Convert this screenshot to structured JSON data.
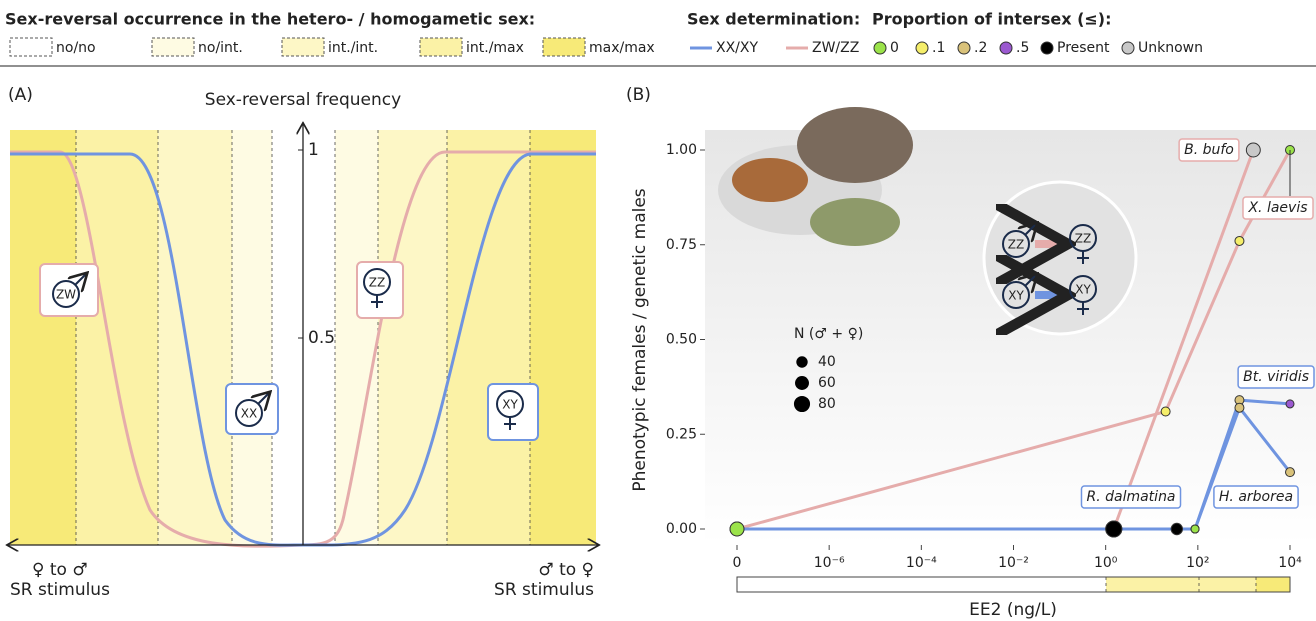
{
  "legend": {
    "occurrence": {
      "title": "Sex-reversal occurrence in the hetero- / homogametic sex:",
      "items": [
        {
          "label": "no/no",
          "color": "#ffffff"
        },
        {
          "label": "no/int.",
          "color": "#fefbe3"
        },
        {
          "label": "int./int.",
          "color": "#fdf7c6"
        },
        {
          "label": "int./max",
          "color": "#fbf2a6"
        },
        {
          "label": "max/max",
          "color": "#f7ea78"
        }
      ]
    },
    "sex_determination": {
      "title": "Sex determination:",
      "items": [
        {
          "label": "XX/XY",
          "color": "#6f94e0"
        },
        {
          "label": "ZW/ZZ",
          "color": "#e5acab"
        }
      ]
    },
    "intersex": {
      "title": "Proportion of intersex (≤):",
      "items": [
        {
          "label": "0",
          "color": "#9be34a"
        },
        {
          "label": ".1",
          "color": "#f5ee6a"
        },
        {
          "label": ".2",
          "color": "#d9c27a"
        },
        {
          "label": ".5",
          "color": "#9b59d0"
        },
        {
          "label": "Present",
          "color": "#000000"
        },
        {
          "label": "Unknown",
          "color": "#c8c8c8"
        }
      ]
    }
  },
  "panel_a": {
    "label": "(A)",
    "title": "Sex-reversal frequency",
    "ylim": [
      0,
      1
    ],
    "yticks": [
      1,
      0.5
    ],
    "left_label": [
      "♀ to ♂",
      "SR stimulus"
    ],
    "right_label": [
      "♂ to ♀",
      "SR stimulus"
    ],
    "icons": [
      "ZW",
      "XX",
      "ZZ",
      "XY"
    ]
  },
  "chart_data": {
    "type": "line",
    "label": "(B)",
    "y_label": "Phenotypic females / genetic males",
    "x_label": "EE2 (ng/L)",
    "xscale": "log",
    "xlim": [
      0,
      10000
    ],
    "ylim": [
      0,
      1
    ],
    "xticks": [
      0,
      {
        "value": 1e-06,
        "label": "10⁻⁶"
      },
      {
        "value": 0.0001,
        "label": "10⁻⁴"
      },
      {
        "value": 0.01,
        "label": "10⁻²"
      },
      {
        "value": 1,
        "label": "10⁰"
      },
      {
        "value": 100,
        "label": "10²"
      },
      {
        "value": 10000,
        "label": "10⁴"
      }
    ],
    "yticks": [
      {
        "value": 0,
        "label": "0.00"
      },
      {
        "value": 0.25,
        "label": "0.25"
      },
      {
        "value": 0.5,
        "label": "0.50"
      },
      {
        "value": 0.75,
        "label": "0.75"
      },
      {
        "value": 1,
        "label": "1.00"
      }
    ],
    "series": [
      {
        "name": "X. laevis",
        "color": "#e5acab",
        "x": [
          0,
          20,
          800,
          10000
        ],
        "values": [
          0,
          0.31,
          0.76,
          1
        ],
        "sizes": [
          60,
          25,
          25,
          25
        ],
        "point_colors": [
          "#9be34a",
          "#f5ee6a",
          "#f5ee6a",
          "#9be34a"
        ]
      },
      {
        "name": "B. bufo",
        "color": "#e5acab",
        "x": [
          1.5,
          1600
        ],
        "values": [
          0,
          1
        ],
        "sizes": [
          80,
          60
        ],
        "point_colors": [
          "#000000",
          "#c8c8c8"
        ]
      },
      {
        "name": "R. dalmatina",
        "color": "#6f94e0",
        "x": [
          0,
          1.5,
          35,
          87
        ],
        "values": [
          0,
          0,
          0,
          0
        ],
        "sizes": [
          60,
          80,
          40,
          20
        ],
        "point_colors": [
          "#9be34a",
          "#000000",
          "#000000",
          "#9be34a"
        ]
      },
      {
        "name": "Bt. viridis",
        "color": "#6f94e0",
        "x": [
          87,
          800,
          10000
        ],
        "values": [
          0,
          0.34,
          0.33
        ],
        "sizes": [
          20,
          25,
          20
        ],
        "point_colors": [
          "#9be34a",
          "#d9c27a",
          "#9b59d0"
        ]
      },
      {
        "name": "H. arborea",
        "color": "#6f94e0",
        "x": [
          87,
          800,
          10000
        ],
        "values": [
          0,
          0.32,
          0.15
        ],
        "sizes": [
          20,
          25,
          25
        ],
        "point_colors": [
          "#9be34a",
          "#d9c27a",
          "#d9c27a"
        ]
      }
    ],
    "size_legend": {
      "title": "N (♂ + ♀)",
      "values": [
        40,
        60,
        80
      ]
    },
    "inset_genotypes": [
      "ZZ",
      "ZZ",
      "XY",
      "XY"
    ]
  }
}
